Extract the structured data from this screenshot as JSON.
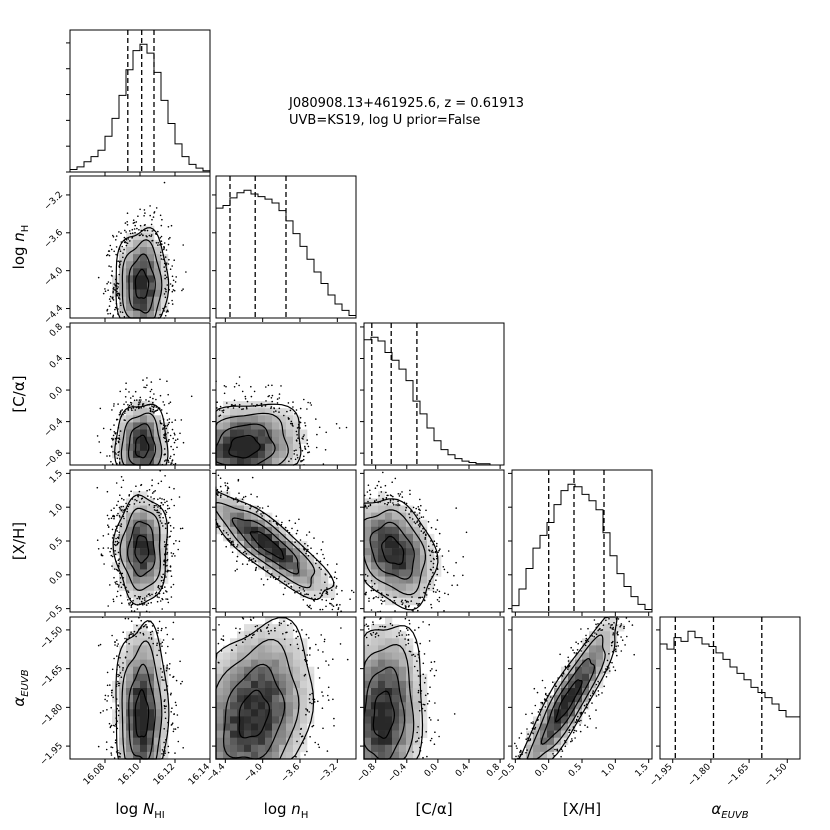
{
  "title": {
    "line1": "J080908.13+461925.6, z = 0.61913",
    "line2": "UVB=KS19, log U prior=False"
  },
  "chart_data": {
    "type": "corner",
    "parameters": [
      {
        "key": "logNHI",
        "label": "log N_HI",
        "label_main": "log N",
        "label_sub": "HI",
        "range": [
          16.06,
          16.14
        ],
        "ticks": [
          "16.08",
          "16.10",
          "16.12",
          "16.14"
        ],
        "tick_values": [
          16.08,
          16.1,
          16.12,
          16.14
        ],
        "quantiles": [
          16.093,
          16.101,
          16.108
        ],
        "hist": [
          0.02,
          0.04,
          0.08,
          0.12,
          0.17,
          0.28,
          0.42,
          0.6,
          0.8,
          0.95,
          1.0,
          0.93,
          0.78,
          0.56,
          0.38,
          0.22,
          0.12,
          0.06,
          0.03,
          0.01
        ]
      },
      {
        "key": "lognH",
        "label": "log n_H",
        "label_main": "log n",
        "label_sub": "H",
        "range": [
          -4.5,
          -3.0
        ],
        "ticks": [
          "−4.4",
          "−4.0",
          "−3.6",
          "−3.2"
        ],
        "tick_values": [
          -4.4,
          -4.0,
          -3.6,
          -3.2
        ],
        "quantiles": [
          -4.35,
          -4.08,
          -3.75
        ],
        "hist": [
          0.86,
          0.88,
          0.94,
          0.98,
          1.0,
          0.97,
          0.95,
          0.93,
          0.9,
          0.84,
          0.76,
          0.66,
          0.56,
          0.46,
          0.36,
          0.27,
          0.18,
          0.11,
          0.06,
          0.02
        ]
      },
      {
        "key": "CA",
        "label": "[C/α]",
        "label_main": "[C/α]",
        "label_sub": "",
        "range": [
          -0.95,
          0.85
        ],
        "ticks": [
          "−0.8",
          "−0.4",
          "0.0",
          "0.4",
          "0.8"
        ],
        "tick_values": [
          -0.8,
          -0.4,
          0.0,
          0.4,
          0.8
        ],
        "quantiles": [
          -0.85,
          -0.6,
          -0.27
        ],
        "hist": [
          0.98,
          1.0,
          0.97,
          0.88,
          0.82,
          0.75,
          0.66,
          0.5,
          0.4,
          0.29,
          0.19,
          0.12,
          0.08,
          0.05,
          0.03,
          0.02,
          0.01,
          0.01,
          0.0,
          0.0
        ]
      },
      {
        "key": "XH",
        "label": "[X/H]",
        "label_main": "[X/H]",
        "label_sub": "",
        "range": [
          -0.55,
          1.55
        ],
        "ticks": [
          "−0.5",
          "0.0",
          "0.5",
          "1.0",
          "1.5"
        ],
        "tick_values": [
          -0.5,
          0.0,
          0.5,
          1.0,
          1.5
        ],
        "quantiles": [
          0.0,
          0.38,
          0.83
        ],
        "hist": [
          0.05,
          0.18,
          0.34,
          0.5,
          0.6,
          0.7,
          0.84,
          0.95,
          1.0,
          0.98,
          0.92,
          0.87,
          0.8,
          0.62,
          0.44,
          0.3,
          0.2,
          0.12,
          0.06,
          0.02
        ]
      },
      {
        "key": "alphaEUVB",
        "label": "α_EUVB",
        "label_main": "α",
        "label_sub": "EUVB",
        "range": [
          -2.0,
          -1.45
        ],
        "ticks": [
          "−1.95",
          "−1.80",
          "−1.65",
          "−1.50"
        ],
        "tick_values": [
          -1.95,
          -1.8,
          -1.65,
          -1.5
        ],
        "quantiles": [
          -1.94,
          -1.79,
          -1.6
        ],
        "hist": [
          0.9,
          0.86,
          0.95,
          0.92,
          1.0,
          0.95,
          0.9,
          0.88,
          0.83,
          0.78,
          0.72,
          0.67,
          0.62,
          0.56,
          0.52,
          0.48,
          0.43,
          0.38,
          0.33,
          0.33
        ]
      }
    ],
    "pairs": [
      {
        "x": "logNHI",
        "y": "lognH",
        "center": [
          16.101,
          -4.15
        ],
        "sigma": [
          0.0075,
          0.3
        ],
        "rho": 0.0
      },
      {
        "x": "logNHI",
        "y": "CA",
        "center": [
          16.101,
          -0.72
        ],
        "sigma": [
          0.0075,
          0.28
        ],
        "rho": 0.0
      },
      {
        "x": "lognH",
        "y": "CA",
        "center": [
          -4.2,
          -0.72
        ],
        "sigma": [
          0.32,
          0.28
        ],
        "rho": 0.15
      },
      {
        "x": "logNHI",
        "y": "XH",
        "center": [
          16.101,
          0.38
        ],
        "sigma": [
          0.0075,
          0.4
        ],
        "rho": 0.0
      },
      {
        "x": "lognH",
        "y": "XH",
        "center": [
          -3.95,
          0.45
        ],
        "sigma": [
          0.35,
          0.4
        ],
        "rho": -0.85
      },
      {
        "x": "CA",
        "y": "XH",
        "center": [
          -0.58,
          0.35
        ],
        "sigma": [
          0.28,
          0.4
        ],
        "rho": -0.3
      },
      {
        "x": "logNHI",
        "y": "alphaEUVB",
        "center": [
          16.101,
          -1.83
        ],
        "sigma": [
          0.0075,
          0.18
        ],
        "rho": 0.0
      },
      {
        "x": "lognH",
        "y": "alphaEUVB",
        "center": [
          -4.1,
          -1.83
        ],
        "sigma": [
          0.32,
          0.18
        ],
        "rho": 0.25
      },
      {
        "x": "CA",
        "y": "alphaEUVB",
        "center": [
          -0.7,
          -1.83
        ],
        "sigma": [
          0.26,
          0.18
        ],
        "rho": 0.1
      },
      {
        "x": "XH",
        "y": "alphaEUVB",
        "center": [
          0.3,
          -1.77
        ],
        "sigma": [
          0.38,
          0.16
        ],
        "rho": 0.9
      }
    ]
  }
}
